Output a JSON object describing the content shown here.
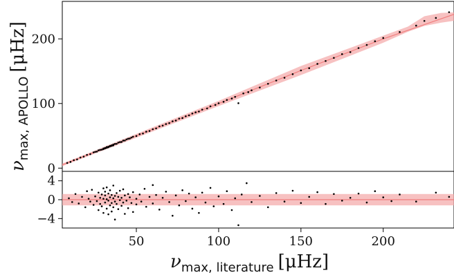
{
  "chart_data": [
    {
      "type": "scatter",
      "panel": "main",
      "xlabel": {
        "symbol": "ν",
        "subscript": "max, literature",
        "unit": "[μHz]"
      },
      "ylabel": {
        "symbol": "ν",
        "subscript": "max, APOLLO",
        "unit": "[μHz]"
      },
      "xlim": [
        5,
        243
      ],
      "ylim": [
        -5,
        258
      ],
      "xticks": [
        50,
        100,
        150,
        200
      ],
      "xtick_labels": [
        "50",
        "100",
        "150",
        "200"
      ],
      "yticks": [
        0,
        100,
        200
      ],
      "ytick_labels": [
        "0",
        "100",
        "200"
      ],
      "grid": false,
      "band": {
        "x": [
          5,
          50,
          100,
          150,
          180,
          200,
          215,
          225,
          235,
          243
        ],
        "lower": [
          3,
          47,
          96,
          144,
          174,
          194,
          211,
          220,
          225,
          228
        ],
        "upper": [
          7,
          53,
          104,
          158,
          186,
          205,
          219,
          235,
          240,
          241
        ],
        "color": "#f4a7a7"
      },
      "trend": {
        "x": [
          5,
          50,
          100,
          150,
          200,
          243
        ],
        "y": [
          5,
          50,
          100,
          151,
          200,
          238
        ],
        "color": "#f07e7e"
      },
      "points_color": "#000000",
      "points": [
        [
          8,
          8
        ],
        [
          10,
          9.6
        ],
        [
          12,
          12.3
        ],
        [
          14,
          13.5
        ],
        [
          16,
          16.4
        ],
        [
          18,
          17.8
        ],
        [
          20,
          20.5
        ],
        [
          22,
          21.7
        ],
        [
          24,
          24.4
        ],
        [
          25,
          25.2
        ],
        [
          26,
          25.6
        ],
        [
          27,
          27.5
        ],
        [
          28,
          28.2
        ],
        [
          29,
          28.6
        ],
        [
          30,
          30.4
        ],
        [
          30,
          29.4
        ],
        [
          31,
          31.3
        ],
        [
          31,
          30.5
        ],
        [
          32,
          32.6
        ],
        [
          32,
          31.4
        ],
        [
          33,
          33.2
        ],
        [
          33,
          32.3
        ],
        [
          34,
          34.5
        ],
        [
          34,
          33.6
        ],
        [
          35,
          35.3
        ],
        [
          35,
          34.4
        ],
        [
          36,
          36.5
        ],
        [
          36,
          35.2
        ],
        [
          37,
          37.4
        ],
        [
          38,
          37.6
        ],
        [
          39,
          39.5
        ],
        [
          40,
          40.3
        ],
        [
          41,
          40.5
        ],
        [
          42,
          42.6
        ],
        [
          43,
          42.7
        ],
        [
          44,
          44.4
        ],
        [
          45,
          45.5
        ],
        [
          46,
          45.8
        ],
        [
          47,
          47.3
        ],
        [
          48,
          48.6
        ],
        [
          50,
          49.7
        ],
        [
          52,
          52.5
        ],
        [
          54,
          53.6
        ],
        [
          56,
          56.4
        ],
        [
          58,
          57.5
        ],
        [
          60,
          60.2
        ],
        [
          62,
          61.5
        ],
        [
          64,
          64.6
        ],
        [
          66,
          65.8
        ],
        [
          68,
          68.2
        ],
        [
          70,
          69.7
        ],
        [
          72,
          72.4
        ],
        [
          74,
          73.6
        ],
        [
          76,
          76.6
        ],
        [
          78,
          77.5
        ],
        [
          80,
          80.2
        ],
        [
          82,
          81.7
        ],
        [
          84,
          84.5
        ],
        [
          86,
          86.3
        ],
        [
          88,
          87.6
        ],
        [
          90,
          90.5
        ],
        [
          93,
          92.4
        ],
        [
          95,
          95.6
        ],
        [
          98,
          97.8
        ],
        [
          100,
          100.4
        ],
        [
          103,
          102.6
        ],
        [
          105,
          105.5
        ],
        [
          108,
          107.7
        ],
        [
          110,
          110.3
        ],
        [
          112,
          100.5
        ],
        [
          115,
          115.6
        ],
        [
          118,
          117.6
        ],
        [
          120,
          120.4
        ],
        [
          125,
          124.7
        ],
        [
          130,
          130.5
        ],
        [
          135,
          135.6
        ],
        [
          140,
          139.8
        ],
        [
          145,
          145.4
        ],
        [
          150,
          151.2
        ],
        [
          155,
          154.6
        ],
        [
          160,
          161.3
        ],
        [
          165,
          165.8
        ],
        [
          170,
          170.6
        ],
        [
          175,
          176.4
        ],
        [
          180,
          179.5
        ],
        [
          185,
          185.8
        ],
        [
          190,
          190.6
        ],
        [
          195,
          196.3
        ],
        [
          200,
          201.4
        ],
        [
          210,
          210.6
        ],
        [
          220,
          220.5
        ],
        [
          225,
          227.8
        ],
        [
          232,
          232.4
        ],
        [
          240,
          241.3
        ]
      ]
    },
    {
      "type": "scatter",
      "panel": "residual",
      "xlim": [
        5,
        243
      ],
      "ylim": [
        -6,
        6
      ],
      "yticks": [
        -4,
        0,
        4
      ],
      "ytick_labels": [
        "−4",
        "0",
        "4"
      ],
      "xticks": [
        50,
        100,
        150,
        200
      ],
      "xtick_labels": [
        "50",
        "100",
        "150",
        "200"
      ],
      "grid": false,
      "band": {
        "lower": -1.2,
        "upper": 1.2,
        "color": "#f4a7a7"
      },
      "zero_line": {
        "y": 0,
        "color": "#f07e7e"
      },
      "points_color": "#000000",
      "points": [
        [
          9,
          0.3
        ],
        [
          11,
          -0.5
        ],
        [
          13,
          1.2
        ],
        [
          15,
          -0.8
        ],
        [
          17,
          0.6
        ],
        [
          19,
          -1.6
        ],
        [
          20,
          1.8
        ],
        [
          21,
          0.2
        ],
        [
          22,
          -0.4
        ],
        [
          23,
          2.1
        ],
        [
          24,
          -1.1
        ],
        [
          25,
          0.7
        ],
        [
          26,
          -0.3
        ],
        [
          27,
          1.5
        ],
        [
          27,
          -2.2
        ],
        [
          28,
          0.4
        ],
        [
          28,
          -0.9
        ],
        [
          29,
          1.1
        ],
        [
          29,
          -1.4
        ],
        [
          30,
          0.2
        ],
        [
          30,
          2.4
        ],
        [
          30,
          -2.8
        ],
        [
          31,
          0.9
        ],
        [
          31,
          -0.6
        ],
        [
          31,
          1.7
        ],
        [
          32,
          -1.9
        ],
        [
          32,
          0.1
        ],
        [
          32,
          2.6
        ],
        [
          33,
          -0.2
        ],
        [
          33,
          1.3
        ],
        [
          33,
          -3.1
        ],
        [
          34,
          0.5
        ],
        [
          34,
          -1.2
        ],
        [
          34,
          2.0
        ],
        [
          35,
          -0.7
        ],
        [
          35,
          1.0
        ],
        [
          35,
          -2.5
        ],
        [
          36,
          0.3
        ],
        [
          36,
          3.0
        ],
        [
          36,
          -1.6
        ],
        [
          37,
          0.8
        ],
        [
          37,
          -0.4
        ],
        [
          37,
          -4.2
        ],
        [
          38,
          1.4
        ],
        [
          38,
          -0.9
        ],
        [
          39,
          0.6
        ],
        [
          39,
          -2.0
        ],
        [
          40,
          1.9
        ],
        [
          40,
          -0.1
        ],
        [
          41,
          0.4
        ],
        [
          41,
          -1.3
        ],
        [
          42,
          2.2
        ],
        [
          42,
          -0.6
        ],
        [
          43,
          -3.0
        ],
        [
          43,
          0.9
        ],
        [
          44,
          -0.2
        ],
        [
          45,
          1.2
        ],
        [
          45,
          -1.8
        ],
        [
          46,
          0.5
        ],
        [
          47,
          -0.7
        ],
        [
          48,
          1.6
        ],
        [
          48,
          -2.6
        ],
        [
          50,
          0.2
        ],
        [
          50,
          -1.0
        ],
        [
          52,
          1.1
        ],
        [
          53,
          -0.4
        ],
        [
          55,
          2.3
        ],
        [
          56,
          -1.5
        ],
        [
          58,
          0.6
        ],
        [
          60,
          -0.8
        ],
        [
          60,
          3.1
        ],
        [
          62,
          1.0
        ],
        [
          64,
          -2.1
        ],
        [
          66,
          0.4
        ],
        [
          68,
          1.7
        ],
        [
          70,
          -0.5
        ],
        [
          72,
          -3.4
        ],
        [
          74,
          0.9
        ],
        [
          76,
          -1.2
        ],
        [
          78,
          2.0
        ],
        [
          80,
          -0.3
        ],
        [
          82,
          1.3
        ],
        [
          84,
          -1.9
        ],
        [
          86,
          0.5
        ],
        [
          88,
          -2.8
        ],
        [
          90,
          1.5
        ],
        [
          92,
          -0.6
        ],
        [
          95,
          2.5
        ],
        [
          97,
          -1.4
        ],
        [
          100,
          0.7
        ],
        [
          103,
          -0.9
        ],
        [
          105,
          1.8
        ],
        [
          108,
          -2.2
        ],
        [
          110,
          0.3
        ],
        [
          112,
          -5.4
        ],
        [
          114,
          1.1
        ],
        [
          117,
          3.5
        ],
        [
          120,
          -0.5
        ],
        [
          125,
          0.8
        ],
        [
          130,
          -1.6
        ],
        [
          135,
          1.4
        ],
        [
          140,
          -0.4
        ],
        [
          145,
          1.9
        ],
        [
          150,
          -0.7
        ],
        [
          155,
          0.6
        ],
        [
          160,
          1.6
        ],
        [
          165,
          -0.9
        ],
        [
          170,
          1.2
        ],
        [
          175,
          -0.2
        ],
        [
          180,
          0.4
        ],
        [
          185,
          1.3
        ],
        [
          190,
          -0.6
        ],
        [
          195,
          1.8
        ],
        [
          200,
          0.5
        ],
        [
          205,
          -0.3
        ],
        [
          210,
          1.1
        ],
        [
          220,
          -0.4
        ],
        [
          232,
          1.5
        ],
        [
          240,
          0.6
        ]
      ]
    }
  ]
}
